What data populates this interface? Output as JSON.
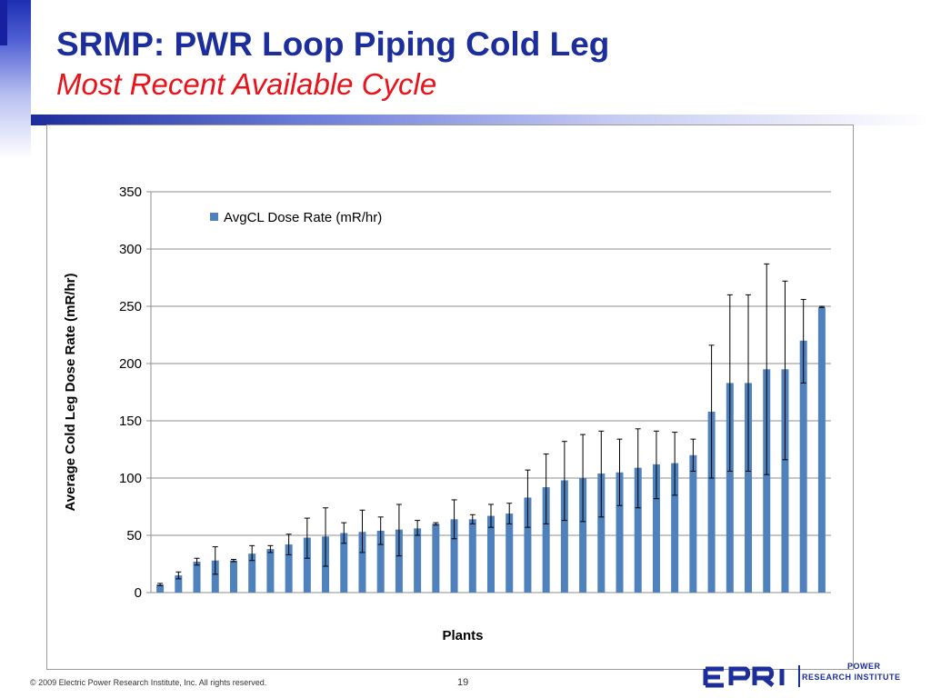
{
  "slide": {
    "title": "SRMP:  PWR Loop Piping Cold Leg",
    "subtitle": "Most Recent Available Cycle",
    "footer_copyright": "© 2009 Electric Power Research Institute, Inc. All rights reserved.",
    "page_number": "19",
    "logo_text_line1": "POWER",
    "logo_text_line2": "RESEARCH INSTITUTE",
    "colors": {
      "title": "#1c2d9c",
      "subtitle": "#e8141b",
      "bar": "#4f81bd"
    }
  },
  "chart_data": {
    "type": "bar",
    "title": "",
    "xlabel": "Plants",
    "ylabel": "Average Cold Leg Dose Rate (mR/hr)",
    "ylim": [
      0,
      350
    ],
    "yticks": [
      0,
      50,
      100,
      150,
      200,
      250,
      300,
      350
    ],
    "grid": true,
    "legend": "top-left",
    "series": [
      {
        "name": "AvgCL Dose Rate (mR/hr)",
        "color": "#4f81bd",
        "values": [
          7,
          15,
          27,
          28,
          28,
          34,
          38,
          42,
          48,
          49,
          52,
          53,
          54,
          55,
          56,
          60,
          64,
          64,
          67,
          69,
          83,
          92,
          98,
          100,
          104,
          105,
          109,
          112,
          113,
          120,
          158,
          183,
          183,
          195,
          195,
          220,
          249
        ],
        "error_low": [
          6,
          12,
          24,
          16,
          27,
          28,
          35,
          33,
          30,
          23,
          43,
          35,
          42,
          32,
          50,
          59,
          47,
          60,
          57,
          60,
          57,
          60,
          63,
          62,
          66,
          76,
          74,
          82,
          85,
          106,
          100,
          106,
          106,
          103,
          116,
          183,
          249
        ],
        "error_high": [
          8,
          18,
          30,
          40,
          29,
          41,
          41,
          51,
          65,
          74,
          61,
          72,
          66,
          77,
          63,
          61,
          81,
          68,
          77,
          78,
          107,
          121,
          132,
          138,
          141,
          134,
          143,
          141,
          140,
          134,
          216,
          260,
          260,
          287,
          272,
          256,
          250
        ]
      }
    ]
  }
}
